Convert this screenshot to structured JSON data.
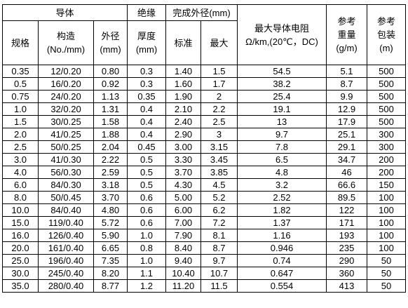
{
  "header": {
    "conductor": "导体",
    "insulation": "绝缘",
    "finished_od": "完成外径(mm)",
    "max_resistance_line1": "最大导体电阻",
    "max_resistance_line2": "Ω/km,(20℃，DC)",
    "ref_weight_line1": "参考",
    "ref_weight_line2": "重量",
    "ref_weight_line3": "(g/m)",
    "ref_pack_line1": "参考",
    "ref_pack_line2": "包装",
    "ref_pack_line3": "(m)",
    "spec": "规格",
    "structure_line1": "构造",
    "structure_line2": "(No./mm)",
    "cond_od_line1": "外径",
    "cond_od_line2": "(mm)",
    "thickness_line1": "厚度",
    "thickness_line2": "(mm)",
    "standard": "标准",
    "max": "最大"
  },
  "rows": [
    [
      "0.35",
      "12/0.20",
      "0.80",
      "0.3",
      "1.40",
      "1.5",
      "54.5",
      "5.1",
      "500"
    ],
    [
      "0.5",
      "16/0.20",
      "0.92",
      "0.3",
      "1.60",
      "1.7",
      "38.2",
      "8.7",
      "500"
    ],
    [
      "0.75",
      "24/0.20",
      "1.13",
      "0.35",
      "1.90",
      "2",
      "25.4",
      "9.9",
      "500"
    ],
    [
      "1.0",
      "32/0.20",
      "1.31",
      "0.4",
      "2.10",
      "2.2",
      "19.1",
      "12.9",
      "500"
    ],
    [
      "1.5",
      "30/0.25",
      "1.58",
      "0.4",
      "2.40",
      "2.5",
      "13",
      "17.9",
      "500"
    ],
    [
      "2.0",
      "41/0.25",
      "1.88",
      "0.4",
      "2.90",
      "3",
      "9.7",
      "25.1",
      "300"
    ],
    [
      "2.5",
      "50/0.25",
      "2.04",
      "0.45",
      "3.00",
      "3.15",
      "7.8",
      "29.1",
      "300"
    ],
    [
      "3.0",
      "41/0.30",
      "2.22",
      "0.5",
      "3.30",
      "3.45",
      "6.5",
      "34.7",
      "200"
    ],
    [
      "4.0",
      "56/0.30",
      "2.59",
      "0.5",
      "3.70",
      "3.85",
      "4.8",
      "46",
      "200"
    ],
    [
      "6.0",
      "84/0.30",
      "3.18",
      "0.5",
      "4.30",
      "4.5",
      "3.2",
      "66.6",
      "150"
    ],
    [
      "8.0",
      "50/0.45",
      "3.70",
      "0.6",
      "5.00",
      "5.2",
      "2.52",
      "89.5",
      "100"
    ],
    [
      "10.0",
      "84/0.40",
      "4.80",
      "0.6",
      "6.00",
      "6.2",
      "1.82",
      "122",
      "100"
    ],
    [
      "15.0",
      "119/0.40",
      "5.72",
      "0.6",
      "7.00",
      "7.2",
      "1.37",
      "171",
      "100"
    ],
    [
      "16.0",
      "126/0.40",
      "5.90",
      "1.0",
      "7.90",
      "8.1",
      "1.16",
      "193",
      "100"
    ],
    [
      "20.0",
      "161/0.40",
      "6.65",
      "0.8",
      "8.40",
      "8.7",
      "0.946",
      "235",
      "100"
    ],
    [
      "25.0",
      "196/0.40",
      "7.35",
      "1.0",
      "9.40",
      "9.7",
      "0.74",
      "290",
      "50"
    ],
    [
      "30.0",
      "245/0.40",
      "8.20",
      "1.1",
      "10.40",
      "10.7",
      "0.647",
      "360",
      "50"
    ],
    [
      "35.0",
      "280/0.40",
      "8.77",
      "1.2",
      "11.20",
      "11.5",
      "0.554",
      "413",
      "50"
    ]
  ]
}
